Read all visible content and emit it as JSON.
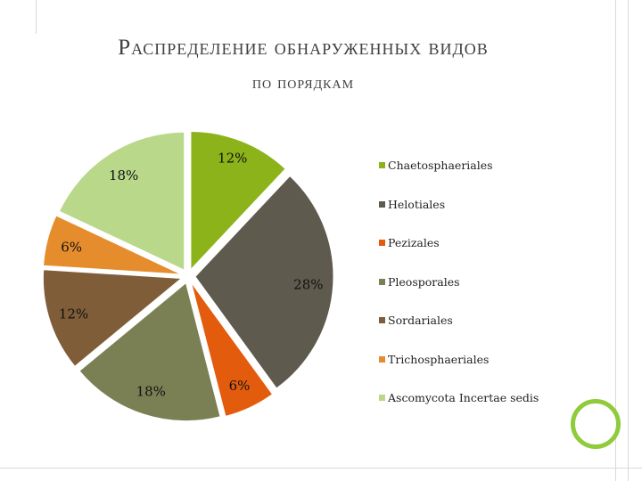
{
  "title": {
    "line1": "Распределение обнаруженных видов",
    "line2": "по порядкам"
  },
  "chart_data": {
    "type": "pie",
    "title": "",
    "slices": [
      {
        "label": "Chaetosphaeriales",
        "value": 12,
        "display": "12%",
        "color": "#8cb31a"
      },
      {
        "label": "Helotiales",
        "value": 28,
        "display": "28%",
        "color": "#5e5a4e"
      },
      {
        "label": "Pezizales",
        "value": 6,
        "display": "6%",
        "color": "#e35c0d"
      },
      {
        "label": "Pleosporales",
        "value": 18,
        "display": "18%",
        "color": "#7b8054"
      },
      {
        "label": "Sordariales",
        "value": 12,
        "display": "12%",
        "color": "#7f5d39"
      },
      {
        "label": "Trichosphaeriales",
        "value": 6,
        "display": "6%",
        "color": "#e58d2d"
      },
      {
        "label": "Ascomycota Incertae sedis",
        "value": 18,
        "display": "18%",
        "color": "#b9d88a"
      }
    ],
    "legend_position": "right",
    "exploded": true
  },
  "decor": {
    "accent": "#8fcb3b"
  }
}
